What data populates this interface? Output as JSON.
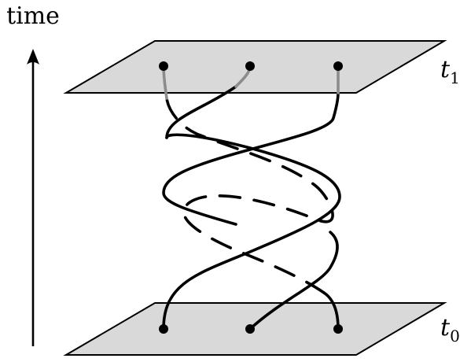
{
  "diagram": {
    "axis_label": "time",
    "planes": [
      {
        "id": "top",
        "label": "t",
        "subscript": "1"
      },
      {
        "id": "bottom",
        "label": "t",
        "subscript": "0"
      }
    ],
    "strand_count": 3,
    "colors": {
      "plane_fill": "#d9d9d9",
      "plane_stroke": "#000000",
      "strand": "#000000",
      "strand_faded": "#8c8c8c",
      "background": "#ffffff"
    }
  }
}
